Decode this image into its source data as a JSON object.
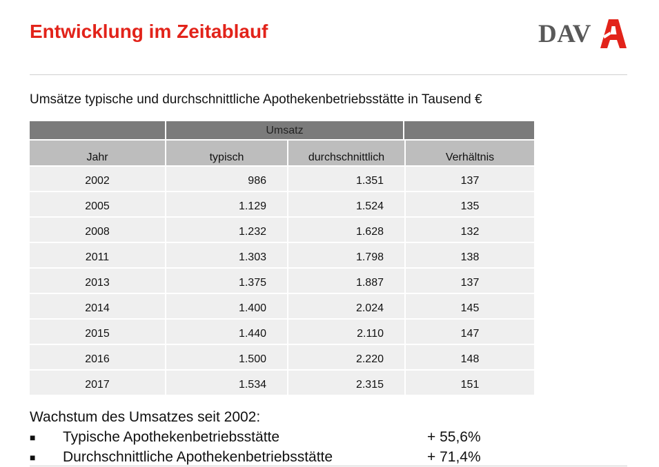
{
  "header": {
    "title": "Entwicklung im Zeitablauf",
    "logo_text": "DAV",
    "accent_color": "#e2231a"
  },
  "subtitle": "Umsätze typische und durchschnittliche Apothekenbetriebsstätte in Tausend €",
  "table": {
    "group_header": "Umsatz",
    "columns": [
      "Jahr",
      "typisch",
      "durchschnittlich",
      "Verhältnis"
    ],
    "rows": [
      [
        "2002",
        "986",
        "1.351",
        "137"
      ],
      [
        "2005",
        "1.129",
        "1.524",
        "135"
      ],
      [
        "2008",
        "1.232",
        "1.628",
        "132"
      ],
      [
        "2011",
        "1.303",
        "1.798",
        "138"
      ],
      [
        "2013",
        "1.375",
        "1.887",
        "137"
      ],
      [
        "2014",
        "1.400",
        "2.024",
        "145"
      ],
      [
        "2015",
        "1.440",
        "2.110",
        "147"
      ],
      [
        "2016",
        "1.500",
        "2.220",
        "148"
      ],
      [
        "2017",
        "1.534",
        "2.315",
        "151"
      ]
    ]
  },
  "growth": {
    "title": "Wachstum des Umsatzes seit 2002:",
    "bullet_glyph": "■",
    "items": [
      {
        "label": "Typische Apothekenbetriebsstätte",
        "value": "+ 55,6%"
      },
      {
        "label": "Durchschnittliche Apothekenbetriebsstätte",
        "value": "+ 71,4%"
      }
    ]
  }
}
